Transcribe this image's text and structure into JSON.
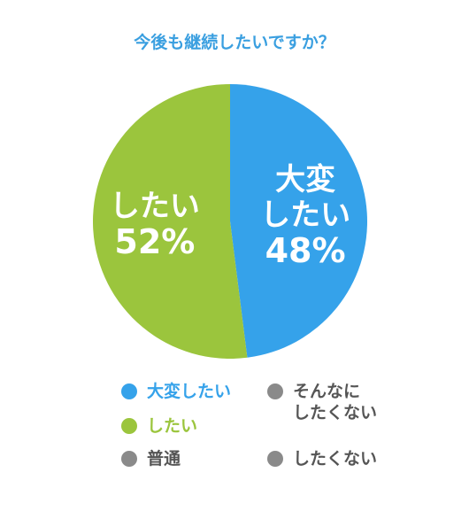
{
  "chart_data": {
    "type": "pie",
    "title": "今後も継続したいですか？",
    "categories": [
      "大変したい",
      "したい",
      "普通",
      "そんなに\nしたくない",
      "したくない"
    ],
    "values": [
      48,
      52,
      0,
      0,
      0
    ],
    "value_labels": [
      "48%",
      "52%",
      null,
      null,
      null
    ],
    "slice_labels": [
      "大変\nしたい",
      "したい",
      null,
      null,
      null
    ],
    "colors": [
      "#35a2ea",
      "#9bc53d",
      "#8a8a8a",
      "#8a8a8a",
      "#8a8a8a"
    ]
  }
}
